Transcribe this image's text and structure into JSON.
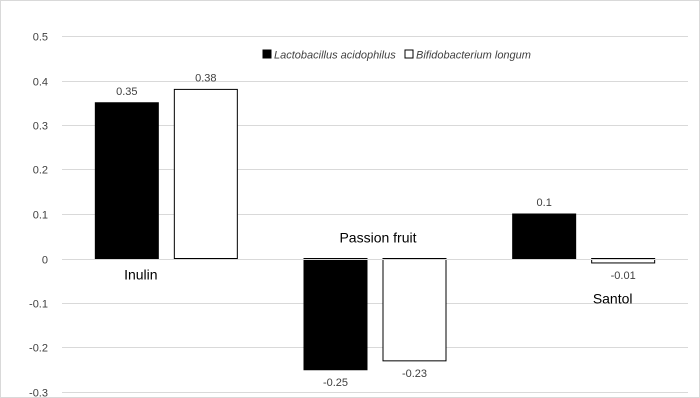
{
  "chart_data": {
    "type": "bar",
    "categories": [
      "Inulin",
      "Passion fruit",
      "Santol"
    ],
    "series": [
      {
        "name": "Lactobacillus acidophilus",
        "values": [
          0.35,
          -0.25,
          0.1
        ],
        "color": "#000000"
      },
      {
        "name": "Bifidobacterium longum",
        "values": [
          0.38,
          -0.23,
          -0.01
        ],
        "color": "#ffffff"
      }
    ],
    "data_labels": [
      [
        "0.35",
        "-0.25",
        "0.1"
      ],
      [
        "0.38",
        "-0.23",
        "-0.01"
      ]
    ],
    "yticks": [
      "0.5",
      "0.4",
      "0.3",
      "0.2",
      "0.1",
      "0",
      "-0.1",
      "-0.2",
      "-0.3"
    ],
    "ylim": [
      -0.3,
      0.5
    ],
    "grid": true,
    "legend_position": "top",
    "title": "",
    "xlabel": "",
    "ylabel": ""
  }
}
